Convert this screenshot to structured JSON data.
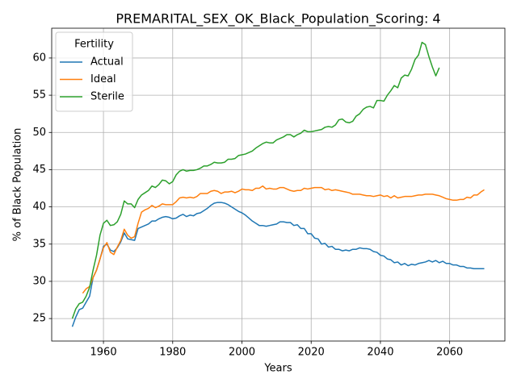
{
  "chart_data": {
    "type": "line",
    "title": "PREMARITAL_SEX_OK_Black_Population_Scoring: 4",
    "xlabel": "Years",
    "ylabel": "% of Black Population",
    "legend_title": "Fertility",
    "legend": "upper left",
    "grid": true,
    "xlim": [
      1945.05,
      2075.95
    ],
    "ylim": [
      21.98,
      64.0
    ],
    "xticks": [
      1960,
      1980,
      2000,
      2020,
      2040,
      2060
    ],
    "yticks": [
      25,
      30,
      35,
      40,
      45,
      50,
      55,
      60
    ],
    "x": [
      1951,
      1952,
      1953,
      1954,
      1955,
      1956,
      1957,
      1958,
      1959,
      1960,
      1961,
      1962,
      1963,
      1964,
      1965,
      1966,
      1967,
      1968,
      1969,
      1970,
      1971,
      1972,
      1973,
      1974,
      1975,
      1976,
      1977,
      1978,
      1979,
      1980,
      1981,
      1982,
      1983,
      1984,
      1985,
      1986,
      1987,
      1988,
      1989,
      1990,
      1991,
      1992,
      1993,
      1994,
      1995,
      1996,
      1997,
      1998,
      1999,
      2000,
      2001,
      2002,
      2003,
      2004,
      2005,
      2006,
      2007,
      2008,
      2009,
      2010,
      2011,
      2012,
      2013,
      2014,
      2015,
      2016,
      2017,
      2018,
      2019,
      2020,
      2021,
      2022,
      2023,
      2024,
      2025,
      2026,
      2027,
      2028,
      2029,
      2030,
      2031,
      2032,
      2033,
      2034,
      2035,
      2036,
      2037,
      2038,
      2039,
      2040,
      2041,
      2042,
      2043,
      2044,
      2045,
      2046,
      2047,
      2048,
      2049,
      2050,
      2051,
      2052,
      2053,
      2054,
      2055,
      2056,
      2057,
      2058,
      2059,
      2060,
      2061,
      2062,
      2063,
      2064,
      2065,
      2066,
      2067,
      2068,
      2069,
      2070
    ],
    "series": [
      {
        "name": "Actual",
        "color": "#1f77b4",
        "values": [
          23.9,
          25.2,
          26.2,
          26.4,
          27.2,
          28.0,
          30.5,
          31.5,
          33.0,
          34.7,
          35.0,
          34.2,
          34.0,
          34.5,
          35.3,
          36.5,
          35.7,
          35.6,
          35.5,
          37.1,
          37.3,
          37.5,
          37.7,
          38.1,
          38.1,
          38.4,
          38.6,
          38.7,
          38.6,
          38.4,
          38.5,
          38.8,
          39.0,
          38.7,
          38.9,
          38.8,
          39.1,
          39.2,
          39.5,
          39.8,
          40.2,
          40.5,
          40.6,
          40.6,
          40.5,
          40.3,
          40.0,
          39.7,
          39.4,
          39.2,
          38.9,
          38.5,
          38.1,
          37.8,
          37.5,
          37.5,
          37.4,
          37.5,
          37.6,
          37.7,
          38.0,
          38.0,
          37.9,
          37.9,
          37.5,
          37.6,
          37.1,
          37.1,
          36.4,
          36.4,
          35.8,
          35.7,
          35.0,
          35.1,
          34.6,
          34.7,
          34.3,
          34.3,
          34.1,
          34.2,
          34.1,
          34.3,
          34.3,
          34.5,
          34.4,
          34.4,
          34.3,
          34.0,
          33.9,
          33.5,
          33.4,
          33.0,
          32.9,
          32.5,
          32.6,
          32.2,
          32.4,
          32.1,
          32.3,
          32.2,
          32.4,
          32.5,
          32.6,
          32.8,
          32.6,
          32.8,
          32.5,
          32.7,
          32.4,
          32.4,
          32.2,
          32.2,
          32.0,
          32.0,
          31.8,
          31.8,
          31.7,
          31.7,
          31.7,
          31.7
        ]
      },
      {
        "name": "Ideal",
        "color": "#ff7f0e",
        "values": [
          null,
          null,
          null,
          28.4,
          29.0,
          29.3,
          30.5,
          31.5,
          33.0,
          34.5,
          35.2,
          33.9,
          33.6,
          34.6,
          35.5,
          37.0,
          36.2,
          35.8,
          36.0,
          37.8,
          39.3,
          39.6,
          39.8,
          40.2,
          39.9,
          40.1,
          40.4,
          40.3,
          40.3,
          40.3,
          40.7,
          41.2,
          41.3,
          41.2,
          41.3,
          41.2,
          41.4,
          41.8,
          41.8,
          41.8,
          42.1,
          42.2,
          42.1,
          41.8,
          42.0,
          42.0,
          42.1,
          41.9,
          42.1,
          42.4,
          42.3,
          42.3,
          42.2,
          42.5,
          42.5,
          42.8,
          42.4,
          42.5,
          42.4,
          42.4,
          42.6,
          42.6,
          42.4,
          42.2,
          42.1,
          42.2,
          42.2,
          42.5,
          42.4,
          42.5,
          42.6,
          42.6,
          42.6,
          42.3,
          42.4,
          42.2,
          42.3,
          42.2,
          42.1,
          42.0,
          41.9,
          41.7,
          41.7,
          41.7,
          41.6,
          41.5,
          41.5,
          41.4,
          41.5,
          41.6,
          41.4,
          41.5,
          41.2,
          41.5,
          41.2,
          41.3,
          41.4,
          41.4,
          41.4,
          41.5,
          41.6,
          41.6,
          41.7,
          41.7,
          41.7,
          41.6,
          41.5,
          41.3,
          41.1,
          41.0,
          40.9,
          40.9,
          41.0,
          41.0,
          41.3,
          41.2,
          41.6,
          41.6,
          42.0,
          42.3
        ]
      },
      {
        "name": "Sterile",
        "color": "#2ca02c",
        "values": [
          25.0,
          26.3,
          27.0,
          27.2,
          28.0,
          29.2,
          31.5,
          33.5,
          36.2,
          37.8,
          38.2,
          37.5,
          37.6,
          38.0,
          39.0,
          40.8,
          40.4,
          40.4,
          39.9,
          41.0,
          41.6,
          41.9,
          42.2,
          42.8,
          42.6,
          43.0,
          43.6,
          43.5,
          43.1,
          43.4,
          44.3,
          44.8,
          45.0,
          44.8,
          44.9,
          44.9,
          45.0,
          45.2,
          45.5,
          45.5,
          45.7,
          46.0,
          45.9,
          45.9,
          46.0,
          46.4,
          46.4,
          46.5,
          46.9,
          47.0,
          47.1,
          47.3,
          47.5,
          47.9,
          48.2,
          48.5,
          48.7,
          48.6,
          48.6,
          49.0,
          49.2,
          49.4,
          49.7,
          49.7,
          49.4,
          49.7,
          49.9,
          50.3,
          50.1,
          50.1,
          50.2,
          50.3,
          50.4,
          50.7,
          50.8,
          50.7,
          51.0,
          51.7,
          51.8,
          51.4,
          51.3,
          51.5,
          52.2,
          52.5,
          53.1,
          53.4,
          53.5,
          53.3,
          54.3,
          54.3,
          54.2,
          55.0,
          55.6,
          56.3,
          56.0,
          57.3,
          57.7,
          57.6,
          58.5,
          59.8,
          60.4,
          62.1,
          61.8,
          60.2,
          58.8,
          57.6,
          58.7,
          null,
          null,
          null,
          null,
          null,
          null,
          null,
          null,
          null,
          null,
          null,
          null,
          null
        ]
      }
    ]
  }
}
